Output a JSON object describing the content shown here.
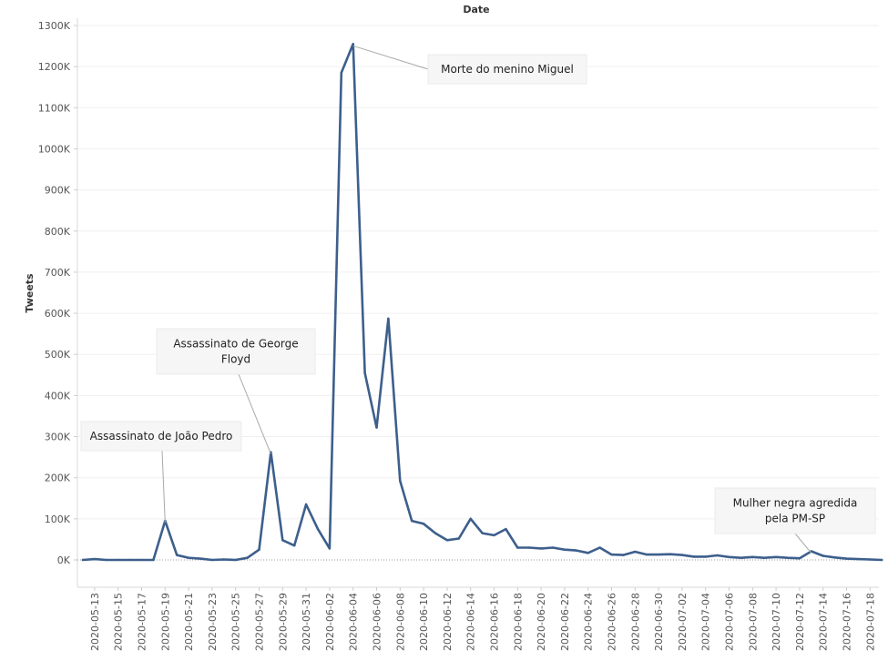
{
  "chart_data": {
    "type": "line",
    "title": "",
    "xlabel": "Date",
    "ylabel": "Tweets",
    "ylim": [
      0,
      1300000
    ],
    "y_ticks": [
      0,
      100000,
      200000,
      300000,
      400000,
      500000,
      600000,
      700000,
      800000,
      900000,
      1000000,
      1100000,
      1200000,
      1300000
    ],
    "y_tick_labels": [
      "0K",
      "100K",
      "200K",
      "300K",
      "400K",
      "500K",
      "600K",
      "700K",
      "800K",
      "900K",
      "1000K",
      "1100K",
      "1200K",
      "1300K"
    ],
    "x_tick_labels": [
      "2020-05-13",
      "2020-05-15",
      "2020-05-17",
      "2020-05-19",
      "2020-05-21",
      "2020-05-23",
      "2020-05-25",
      "2020-05-27",
      "2020-05-29",
      "2020-05-31",
      "2020-06-02",
      "2020-06-04",
      "2020-06-06",
      "2020-06-08",
      "2020-06-10",
      "2020-06-12",
      "2020-06-14",
      "2020-06-16",
      "2020-06-18",
      "2020-06-20",
      "2020-06-22",
      "2020-06-24",
      "2020-06-26",
      "2020-06-28",
      "2020-06-30",
      "2020-07-02",
      "2020-07-04",
      "2020-07-06",
      "2020-07-08",
      "2020-07-10",
      "2020-07-12",
      "2020-07-14",
      "2020-07-16",
      "2020-07-18"
    ],
    "grid": true,
    "line_color": "#3d5f8c",
    "series": [
      {
        "name": "",
        "x": [
          "2020-05-12",
          "2020-05-13",
          "2020-05-14",
          "2020-05-15",
          "2020-05-16",
          "2020-05-17",
          "2020-05-18",
          "2020-05-19",
          "2020-05-20",
          "2020-05-21",
          "2020-05-22",
          "2020-05-23",
          "2020-05-24",
          "2020-05-25",
          "2020-05-26",
          "2020-05-27",
          "2020-05-28",
          "2020-05-29",
          "2020-05-30",
          "2020-05-31",
          "2020-06-01",
          "2020-06-02",
          "2020-06-03",
          "2020-06-04",
          "2020-06-05",
          "2020-06-06",
          "2020-06-07",
          "2020-06-08",
          "2020-06-09",
          "2020-06-10",
          "2020-06-11",
          "2020-06-12",
          "2020-06-13",
          "2020-06-14",
          "2020-06-15",
          "2020-06-16",
          "2020-06-17",
          "2020-06-18",
          "2020-06-19",
          "2020-06-20",
          "2020-06-21",
          "2020-06-22",
          "2020-06-23",
          "2020-06-24",
          "2020-06-25",
          "2020-06-26",
          "2020-06-27",
          "2020-06-28",
          "2020-06-29",
          "2020-06-30",
          "2020-07-01",
          "2020-07-02",
          "2020-07-03",
          "2020-07-04",
          "2020-07-05",
          "2020-07-06",
          "2020-07-07",
          "2020-07-08",
          "2020-07-09",
          "2020-07-10",
          "2020-07-11",
          "2020-07-12",
          "2020-07-13",
          "2020-07-14",
          "2020-07-15",
          "2020-07-16",
          "2020-07-17",
          "2020-07-18",
          "2020-07-19"
        ],
        "values": [
          0,
          2000,
          0,
          0,
          0,
          0,
          0,
          95000,
          12000,
          5000,
          3000,
          0,
          1000,
          0,
          5000,
          25000,
          262000,
          48000,
          35000,
          135000,
          75000,
          28000,
          1185000,
          1255000,
          455000,
          322000,
          587000,
          192000,
          95000,
          88000,
          65000,
          48000,
          52000,
          100000,
          65000,
          60000,
          75000,
          30000,
          30000,
          28000,
          30000,
          25000,
          23000,
          17000,
          30000,
          13000,
          12000,
          20000,
          13000,
          13000,
          14000,
          12000,
          8000,
          8000,
          11000,
          7000,
          5000,
          7000,
          5000,
          7000,
          5000,
          4000,
          21000,
          10000,
          6000,
          3000,
          2000,
          1000,
          0
        ]
      }
    ],
    "annotations": [
      {
        "text": [
          "Assassinato de João Pedro"
        ],
        "date": "2020-05-19",
        "value": 95000
      },
      {
        "text": [
          "Assassinato de George",
          "Floyd"
        ],
        "date": "2020-05-28",
        "value": 262000
      },
      {
        "text": [
          "Morte do menino Miguel"
        ],
        "date": "2020-06-04",
        "value": 1255000
      },
      {
        "text": [
          "Mulher negra agredida",
          "pela PM-SP"
        ],
        "date": "2020-07-13",
        "value": 21000
      }
    ]
  }
}
